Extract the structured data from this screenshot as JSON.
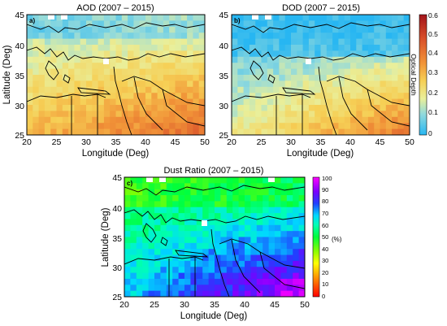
{
  "figure": {
    "panels": [
      {
        "id": "a",
        "label": "a)",
        "title": "AOD (2007 – 2015)",
        "xlabel": "Longitude (Deg)",
        "ylabel": "Latitude (Deg)",
        "x_ticks": [
          "20",
          "25",
          "30",
          "35",
          "40",
          "45",
          "50"
        ],
        "y_ticks": [
          "45",
          "40",
          "35",
          "30",
          "25"
        ]
      },
      {
        "id": "b",
        "label": "b)",
        "title": "DOD (2007 – 2015)",
        "xlabel": "Longitude (Deg)",
        "ylabel": "",
        "x_ticks": [
          "20",
          "25",
          "30",
          "35",
          "40",
          "45",
          "50"
        ],
        "y_ticks": [
          "45",
          "40",
          "35",
          "30",
          "25"
        ]
      },
      {
        "id": "c",
        "label": "c)",
        "title": "Dust Ratio (2007 – 2015)",
        "xlabel": "Longitude (Deg)",
        "ylabel": "Latitude (Deg)",
        "x_ticks": [
          "20",
          "25",
          "30",
          "35",
          "40",
          "45",
          "50"
        ],
        "y_ticks": [
          "45",
          "40",
          "35",
          "30",
          "25"
        ]
      }
    ],
    "colorbar_top": {
      "label": "Optical Depth",
      "ticks": [
        "0.6",
        "0.5",
        "0.4",
        "0.3",
        "0.2",
        "0.1",
        "0"
      ]
    },
    "colorbar_bottom": {
      "label": "(%)",
      "ticks": [
        "100",
        "90",
        "80",
        "70",
        "60",
        "50",
        "40",
        "30",
        "20",
        "10",
        "0"
      ]
    }
  }
}
